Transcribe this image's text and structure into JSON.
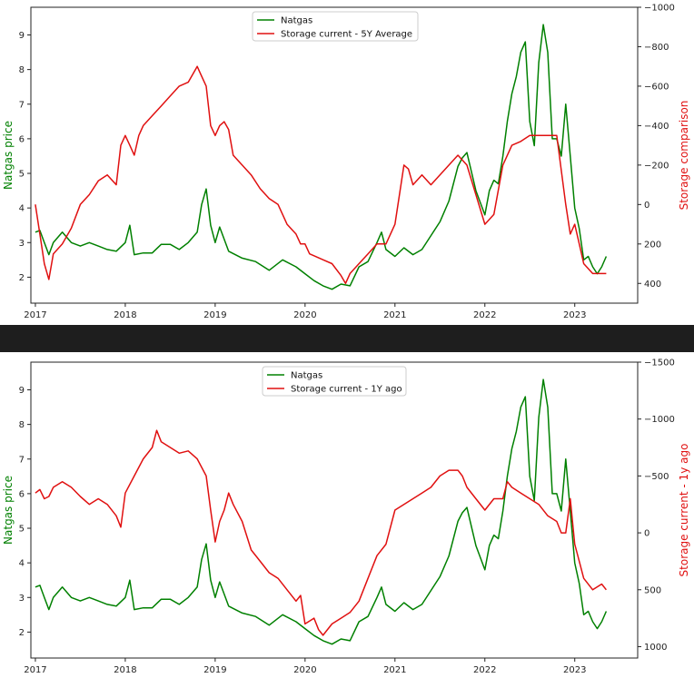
{
  "colors": {
    "green": "#008000",
    "red": "#e01010"
  },
  "chart_data": [
    {
      "type": "line",
      "ylabel_left": "Natgas price",
      "ylabel_right": "Storage comparison",
      "right_axis_inverted": true,
      "x_ticks": [
        "2017",
        "2018",
        "2019",
        "2020",
        "2021",
        "2022",
        "2023"
      ],
      "xlim": [
        2016.95,
        2023.7
      ],
      "ylim_left": [
        1.25,
        9.8
      ],
      "ylim_right": [
        500,
        -1000
      ],
      "left_ticks": [
        2,
        3,
        4,
        5,
        6,
        7,
        8,
        9
      ],
      "right_ticks": [
        400,
        200,
        0,
        -200,
        -400,
        -600,
        -800,
        -1000
      ],
      "right_tick_labels": [
        "400",
        "200",
        "0",
        "−200",
        "−400",
        "−600",
        "−800",
        "−1000"
      ],
      "legend": {
        "placement": "top-center",
        "entries": [
          "Natgas",
          "Storage current - 5Y Average"
        ]
      },
      "series": [
        {
          "name": "Natgas",
          "axis": "left",
          "color": "#008000",
          "x": [
            2017.0,
            2017.05,
            2017.1,
            2017.15,
            2017.2,
            2017.3,
            2017.4,
            2017.5,
            2017.6,
            2017.7,
            2017.8,
            2017.9,
            2018.0,
            2018.05,
            2018.1,
            2018.2,
            2018.3,
            2018.4,
            2018.5,
            2018.6,
            2018.7,
            2018.8,
            2018.85,
            2018.9,
            2018.95,
            2019.0,
            2019.05,
            2019.15,
            2019.3,
            2019.45,
            2019.6,
            2019.75,
            2019.9,
            2020.0,
            2020.1,
            2020.2,
            2020.3,
            2020.4,
            2020.5,
            2020.6,
            2020.7,
            2020.8,
            2020.85,
            2020.9,
            2021.0,
            2021.1,
            2021.2,
            2021.3,
            2021.4,
            2021.5,
            2021.6,
            2021.7,
            2021.75,
            2021.8,
            2021.9,
            2022.0,
            2022.05,
            2022.1,
            2022.15,
            2022.2,
            2022.25,
            2022.3,
            2022.35,
            2022.4,
            2022.45,
            2022.5,
            2022.55,
            2022.6,
            2022.65,
            2022.7,
            2022.75,
            2022.8,
            2022.85,
            2022.9,
            2022.95,
            2023.0,
            2023.05,
            2023.1,
            2023.15,
            2023.2,
            2023.25,
            2023.3,
            2023.35
          ],
          "values": [
            3.3,
            3.35,
            3.0,
            2.65,
            3.0,
            3.3,
            3.0,
            2.9,
            3.0,
            2.9,
            2.8,
            2.75,
            3.0,
            3.5,
            2.65,
            2.7,
            2.7,
            2.95,
            2.95,
            2.8,
            3.0,
            3.3,
            4.1,
            4.55,
            3.5,
            3.0,
            3.45,
            2.75,
            2.55,
            2.45,
            2.2,
            2.5,
            2.3,
            2.1,
            1.9,
            1.75,
            1.65,
            1.8,
            1.75,
            2.3,
            2.45,
            3.0,
            3.3,
            2.8,
            2.6,
            2.85,
            2.65,
            2.8,
            3.2,
            3.6,
            4.2,
            5.2,
            5.45,
            5.6,
            4.5,
            3.8,
            4.5,
            4.8,
            4.7,
            5.5,
            6.5,
            7.3,
            7.8,
            8.5,
            8.8,
            6.5,
            5.8,
            8.2,
            9.3,
            8.5,
            6.0,
            6.0,
            5.5,
            7.0,
            5.5,
            4.0,
            3.4,
            2.5,
            2.6,
            2.3,
            2.1,
            2.3,
            2.6
          ]
        },
        {
          "name": "Storage current - 5Y Average",
          "axis": "right",
          "color": "#e01010",
          "x": [
            2017.0,
            2017.05,
            2017.1,
            2017.15,
            2017.2,
            2017.3,
            2017.4,
            2017.5,
            2017.6,
            2017.7,
            2017.8,
            2017.9,
            2017.95,
            2018.0,
            2018.05,
            2018.1,
            2018.15,
            2018.2,
            2018.3,
            2018.4,
            2018.5,
            2018.6,
            2018.7,
            2018.8,
            2018.85,
            2018.9,
            2018.95,
            2019.0,
            2019.05,
            2019.1,
            2019.15,
            2019.2,
            2019.3,
            2019.4,
            2019.5,
            2019.6,
            2019.7,
            2019.8,
            2019.9,
            2019.95,
            2020.0,
            2020.05,
            2020.1,
            2020.2,
            2020.3,
            2020.4,
            2020.45,
            2020.5,
            2020.6,
            2020.7,
            2020.8,
            2020.9,
            2021.0,
            2021.1,
            2021.15,
            2021.2,
            2021.3,
            2021.4,
            2021.5,
            2021.6,
            2021.7,
            2021.8,
            2021.9,
            2022.0,
            2022.1,
            2022.2,
            2022.3,
            2022.4,
            2022.5,
            2022.6,
            2022.7,
            2022.8,
            2022.9,
            2022.95,
            2023.0,
            2023.05,
            2023.1,
            2023.2,
            2023.3,
            2023.35
          ],
          "values": [
            0,
            150,
            300,
            380,
            250,
            200,
            120,
            0,
            -50,
            -120,
            -150,
            -100,
            -300,
            -350,
            -300,
            -250,
            -350,
            -400,
            -450,
            -500,
            -550,
            -600,
            -620,
            -700,
            -650,
            -600,
            -400,
            -350,
            -400,
            -420,
            -380,
            -250,
            -200,
            -150,
            -80,
            -30,
            0,
            100,
            150,
            200,
            200,
            250,
            260,
            280,
            300,
            360,
            400,
            350,
            300,
            250,
            200,
            200,
            100,
            -200,
            -180,
            -100,
            -150,
            -100,
            -150,
            -200,
            -250,
            -200,
            -50,
            100,
            50,
            -200,
            -300,
            -320,
            -350,
            -350,
            -350,
            -350,
            0,
            150,
            100,
            200,
            300,
            350,
            350,
            350
          ]
        }
      ]
    },
    {
      "type": "line",
      "ylabel_left": "Natgas price",
      "ylabel_right": "Storage current - 1y ago",
      "right_axis_inverted": true,
      "x_ticks": [
        "2017",
        "2018",
        "2019",
        "2020",
        "2021",
        "2022",
        "2023"
      ],
      "xlim": [
        2016.95,
        2023.7
      ],
      "ylim_left": [
        1.25,
        9.8
      ],
      "ylim_right": [
        1100,
        -1500
      ],
      "left_ticks": [
        2,
        3,
        4,
        5,
        6,
        7,
        8,
        9
      ],
      "right_ticks": [
        1000,
        500,
        0,
        -500,
        -1000,
        -1500
      ],
      "right_tick_labels": [
        "1000",
        "500",
        "0",
        "−500",
        "−1000",
        "−1500"
      ],
      "legend": {
        "placement": "top-center",
        "entries": [
          "Natgas",
          "Storage current - 1Y ago"
        ]
      },
      "series": [
        {
          "name": "Natgas",
          "axis": "left",
          "color": "#008000",
          "x": [
            2017.0,
            2017.05,
            2017.1,
            2017.15,
            2017.2,
            2017.3,
            2017.4,
            2017.5,
            2017.6,
            2017.7,
            2017.8,
            2017.9,
            2018.0,
            2018.05,
            2018.1,
            2018.2,
            2018.3,
            2018.4,
            2018.5,
            2018.6,
            2018.7,
            2018.8,
            2018.85,
            2018.9,
            2018.95,
            2019.0,
            2019.05,
            2019.15,
            2019.3,
            2019.45,
            2019.6,
            2019.75,
            2019.9,
            2020.0,
            2020.1,
            2020.2,
            2020.3,
            2020.4,
            2020.5,
            2020.6,
            2020.7,
            2020.8,
            2020.85,
            2020.9,
            2021.0,
            2021.1,
            2021.2,
            2021.3,
            2021.4,
            2021.5,
            2021.6,
            2021.7,
            2021.75,
            2021.8,
            2021.9,
            2022.0,
            2022.05,
            2022.1,
            2022.15,
            2022.2,
            2022.25,
            2022.3,
            2022.35,
            2022.4,
            2022.45,
            2022.5,
            2022.55,
            2022.6,
            2022.65,
            2022.7,
            2022.75,
            2022.8,
            2022.85,
            2022.9,
            2022.95,
            2023.0,
            2023.05,
            2023.1,
            2023.15,
            2023.2,
            2023.25,
            2023.3,
            2023.35
          ],
          "values": [
            3.3,
            3.35,
            3.0,
            2.65,
            3.0,
            3.3,
            3.0,
            2.9,
            3.0,
            2.9,
            2.8,
            2.75,
            3.0,
            3.5,
            2.65,
            2.7,
            2.7,
            2.95,
            2.95,
            2.8,
            3.0,
            3.3,
            4.1,
            4.55,
            3.5,
            3.0,
            3.45,
            2.75,
            2.55,
            2.45,
            2.2,
            2.5,
            2.3,
            2.1,
            1.9,
            1.75,
            1.65,
            1.8,
            1.75,
            2.3,
            2.45,
            3.0,
            3.3,
            2.8,
            2.6,
            2.85,
            2.65,
            2.8,
            3.2,
            3.6,
            4.2,
            5.2,
            5.45,
            5.6,
            4.5,
            3.8,
            4.5,
            4.8,
            4.7,
            5.5,
            6.5,
            7.3,
            7.8,
            8.5,
            8.8,
            6.5,
            5.8,
            8.2,
            9.3,
            8.5,
            6.0,
            6.0,
            5.5,
            7.0,
            5.5,
            4.0,
            3.4,
            2.5,
            2.6,
            2.3,
            2.1,
            2.3,
            2.6
          ]
        },
        {
          "name": "Storage current - 1Y ago",
          "axis": "right",
          "color": "#e01010",
          "x": [
            2017.0,
            2017.05,
            2017.1,
            2017.15,
            2017.2,
            2017.3,
            2017.4,
            2017.5,
            2017.6,
            2017.7,
            2017.8,
            2017.9,
            2017.95,
            2018.0,
            2018.1,
            2018.2,
            2018.3,
            2018.35,
            2018.4,
            2018.5,
            2018.6,
            2018.7,
            2018.8,
            2018.9,
            2018.95,
            2019.0,
            2019.05,
            2019.1,
            2019.15,
            2019.2,
            2019.3,
            2019.4,
            2019.5,
            2019.6,
            2019.7,
            2019.8,
            2019.9,
            2019.95,
            2020.0,
            2020.1,
            2020.15,
            2020.2,
            2020.3,
            2020.4,
            2020.5,
            2020.6,
            2020.7,
            2020.8,
            2020.9,
            2021.0,
            2021.1,
            2021.2,
            2021.3,
            2021.4,
            2021.5,
            2021.6,
            2021.7,
            2021.75,
            2021.8,
            2021.9,
            2022.0,
            2022.1,
            2022.2,
            2022.25,
            2022.3,
            2022.4,
            2022.5,
            2022.6,
            2022.7,
            2022.8,
            2022.85,
            2022.9,
            2022.95,
            2023.0,
            2023.05,
            2023.1,
            2023.2,
            2023.3,
            2023.35
          ],
          "values": [
            -350,
            -380,
            -300,
            -320,
            -400,
            -450,
            -400,
            -320,
            -250,
            -300,
            -250,
            -150,
            -50,
            -350,
            -500,
            -650,
            -750,
            -900,
            -800,
            -750,
            -700,
            -720,
            -650,
            -500,
            -200,
            80,
            -100,
            -200,
            -350,
            -250,
            -100,
            150,
            250,
            350,
            400,
            500,
            600,
            550,
            800,
            750,
            850,
            900,
            800,
            750,
            700,
            600,
            400,
            200,
            100,
            -200,
            -250,
            -300,
            -350,
            -400,
            -500,
            -550,
            -550,
            -500,
            -400,
            -300,
            -200,
            -300,
            -300,
            -450,
            -400,
            -350,
            -300,
            -250,
            -150,
            -100,
            0,
            0,
            -300,
            100,
            250,
            400,
            500,
            450,
            500
          ]
        }
      ]
    }
  ]
}
